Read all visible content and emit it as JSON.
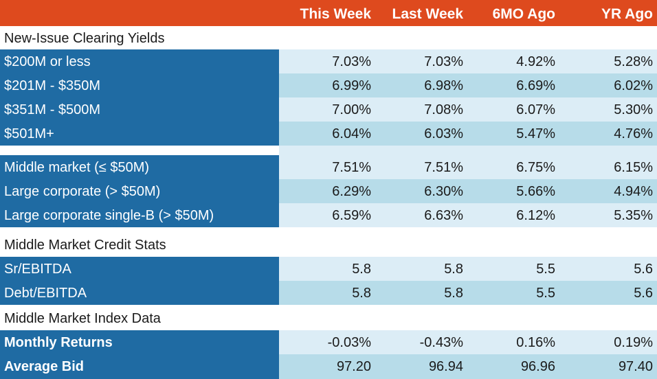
{
  "headers": {
    "col1": "This Week",
    "col2": "Last Week",
    "col3": "6MO Ago",
    "col4": "YR Ago"
  },
  "sections": {
    "clearing_yields": "New-Issue Clearing Yields",
    "credit_stats": "Middle Market Credit Stats",
    "index_data": "Middle Market Index Data"
  },
  "rows": [
    {
      "label": "$200M or less",
      "values": [
        "7.03%",
        "7.03%",
        "4.92%",
        "5.28%"
      ]
    },
    {
      "label": "$201M - $350M",
      "values": [
        "6.99%",
        "6.98%",
        "6.69%",
        "6.02%"
      ]
    },
    {
      "label": "$351M - $500M",
      "values": [
        "7.00%",
        "7.08%",
        "6.07%",
        "5.30%"
      ]
    },
    {
      "label": "$501M+",
      "values": [
        "6.04%",
        "6.03%",
        "5.47%",
        "4.76%"
      ]
    },
    {
      "label": "Middle market (≤ $50M)",
      "values": [
        "7.51%",
        "7.51%",
        "6.75%",
        "6.15%"
      ]
    },
    {
      "label": "Large corporate (> $50M)",
      "values": [
        "6.29%",
        "6.30%",
        "5.66%",
        "4.94%"
      ]
    },
    {
      "label": "Large corporate single-B (> $50M)",
      "values": [
        "6.59%",
        "6.63%",
        "6.12%",
        "5.35%"
      ]
    },
    {
      "label": "Sr/EBITDA",
      "values": [
        "5.8",
        "5.8",
        "5.5",
        "5.6"
      ]
    },
    {
      "label": "Debt/EBITDA",
      "values": [
        "5.8",
        "5.8",
        "5.5",
        "5.6"
      ]
    },
    {
      "label": "Monthly Returns",
      "values": [
        "-0.03%",
        "-0.43%",
        "0.16%",
        "0.19%"
      ]
    },
    {
      "label": "Average Bid",
      "values": [
        "97.20",
        "96.94",
        "96.96",
        "97.40"
      ]
    }
  ],
  "colors": {
    "header": "#de4a1e",
    "label_cell": "#1f6ba3",
    "row_light": "#dcedf6",
    "row_dark": "#b7dce9"
  }
}
